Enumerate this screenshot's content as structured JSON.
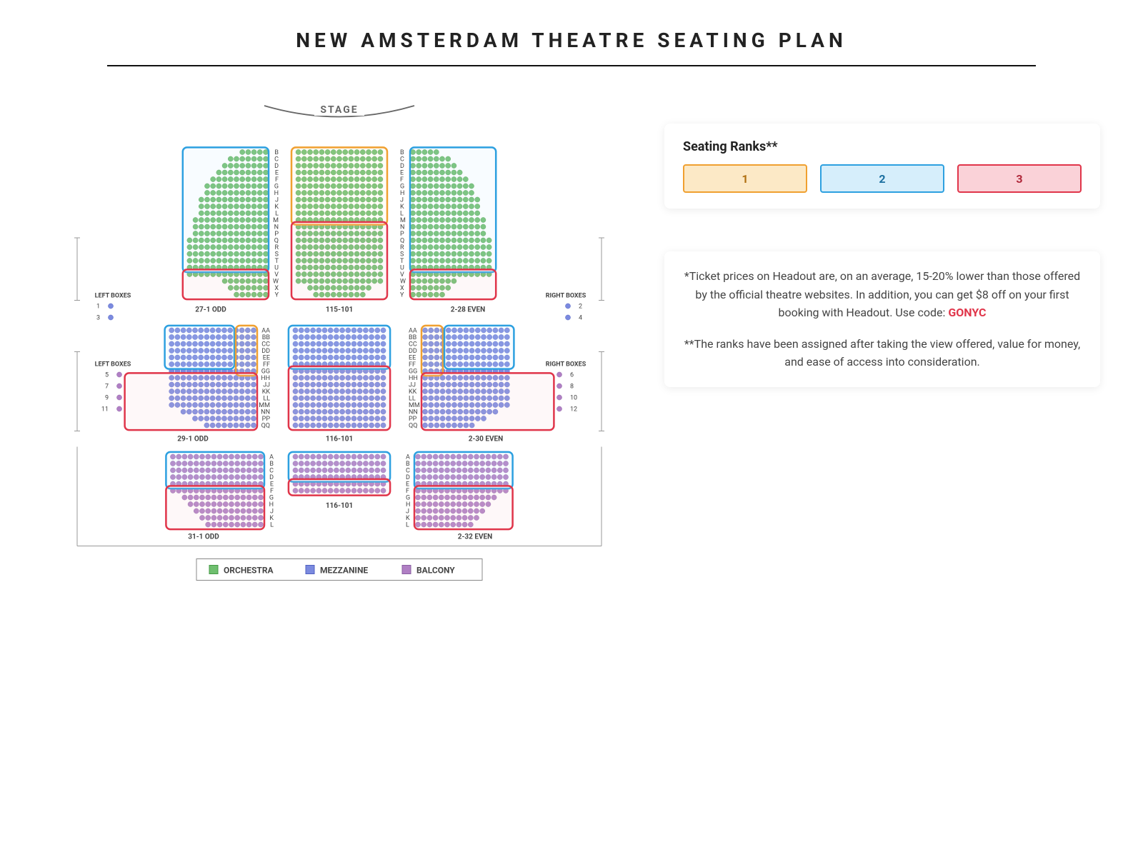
{
  "title": "NEW AMSTERDAM THEATRE SEATING PLAN",
  "stage_label": "STAGE",
  "colors": {
    "orchestra_fill": "#6fbf6f",
    "orchestra_stroke": "#459a45",
    "mezzanine_fill": "#7b8adf",
    "mezzanine_stroke": "#5060c0",
    "balcony_fill": "#b07fc4",
    "balcony_stroke": "#8a5fa2",
    "rank1_stroke": "#f0a030",
    "rank1_fill": "#fce9c6",
    "rank2_stroke": "#2da0e0",
    "rank2_fill": "#cfeafc",
    "rank3_stroke": "#e0354a",
    "rank3_fill": "#fad2d8",
    "bg": "#ffffff",
    "text": "#444444",
    "rule": "#111111"
  },
  "geometry": {
    "seat_radius": 3.6,
    "seat_dx": 8.2,
    "row_dy": 9.5
  },
  "ranks_card": {
    "title": "Seating Ranks**",
    "pills": [
      "1",
      "2",
      "3"
    ]
  },
  "side_levels": {
    "title": "ORCHESTRA",
    "mezz": "MEZZANINE",
    "balc": "BALCONY"
  },
  "note1_pre": "*Ticket prices on Headout are, on an average, 15-20% lower than those offered by the official theatre websites. In addition, you can get $8 off on your first booking with Headout. Use code: ",
  "note1_code": "GONYC",
  "note2": "**The ranks have been assigned after taking the view offered, value for money, and ease of access into consideration.",
  "boxes": {
    "left_label": "LEFT BOXES",
    "right_label": "RIGHT BOXES",
    "upper_left": [
      "1",
      "3"
    ],
    "upper_right": [
      "2",
      "4"
    ],
    "lower_left": [
      "5",
      "7",
      "9",
      "11"
    ],
    "lower_right": [
      "6",
      "8",
      "10",
      "12"
    ]
  },
  "orchestra": {
    "row_labels": [
      "B",
      "C",
      "D",
      "E",
      "F",
      "G",
      "H",
      "J",
      "K",
      "L",
      "M",
      "N",
      "P",
      "Q",
      "R",
      "S",
      "T",
      "U",
      "V",
      "W",
      "X",
      "Y"
    ],
    "left_counts": [
      5,
      7,
      8,
      9,
      10,
      11,
      11,
      12,
      12,
      12,
      13,
      13,
      13,
      14,
      14,
      14,
      14,
      14,
      14,
      8,
      7,
      6
    ],
    "center_counts": [
      15,
      15,
      15,
      15,
      15,
      15,
      15,
      15,
      15,
      15,
      15,
      15,
      15,
      15,
      15,
      15,
      15,
      15,
      15,
      15,
      11,
      9
    ],
    "right_counts": [
      5,
      7,
      8,
      9,
      10,
      11,
      11,
      12,
      12,
      12,
      13,
      13,
      13,
      14,
      14,
      14,
      14,
      14,
      14,
      8,
      7,
      6
    ],
    "left_caption": "27-1 ODD",
    "center_caption": "115-101",
    "right_caption": "2-28 EVEN",
    "rank_boxes": [
      {
        "rank": 2,
        "side": "left",
        "row_start": 0,
        "row_end": 17
      },
      {
        "rank": 1,
        "side": "center",
        "row_start": 0,
        "row_end": 10
      },
      {
        "rank": 2,
        "side": "right",
        "row_start": 0,
        "row_end": 17
      },
      {
        "rank": 3,
        "side": "left",
        "row_start": 18,
        "row_end": 21
      },
      {
        "rank": 3,
        "side": "center",
        "row_start": 11,
        "row_end": 21
      },
      {
        "rank": 3,
        "side": "right",
        "row_start": 18,
        "row_end": 21
      }
    ]
  },
  "mezzanine": {
    "row_labels": [
      "AA",
      "BB",
      "CC",
      "DD",
      "EE",
      "FF",
      "GG",
      "HH",
      "JJ",
      "KK",
      "LL",
      "MM",
      "NN",
      "PP",
      "QQ"
    ],
    "left_counts": [
      15,
      15,
      15,
      15,
      15,
      15,
      15,
      15,
      15,
      15,
      15,
      15,
      13,
      11,
      9
    ],
    "center_counts": [
      16,
      16,
      16,
      16,
      16,
      16,
      16,
      16,
      16,
      16,
      16,
      16,
      16,
      16,
      16
    ],
    "right_counts": [
      15,
      15,
      15,
      15,
      15,
      15,
      15,
      15,
      15,
      15,
      15,
      15,
      13,
      11,
      9
    ],
    "left_caption": "29-1 ODD",
    "center_caption": "116-101",
    "right_caption": "2-30 EVEN",
    "rank_boxes": [
      {
        "rank": 2,
        "side": "left-out",
        "row_start": 0,
        "row_end": 5
      },
      {
        "rank": 1,
        "side": "left-in",
        "row_start": 0,
        "row_end": 6
      },
      {
        "rank": 2,
        "side": "center",
        "row_start": 0,
        "row_end": 5
      },
      {
        "rank": 1,
        "side": "right-in",
        "row_start": 0,
        "row_end": 6
      },
      {
        "rank": 2,
        "side": "right-out",
        "row_start": 0,
        "row_end": 5
      },
      {
        "rank": 3,
        "side": "left",
        "row_start": 7,
        "row_end": 14
      },
      {
        "rank": 3,
        "side": "center",
        "row_start": 6,
        "row_end": 14
      },
      {
        "rank": 3,
        "side": "right",
        "row_start": 7,
        "row_end": 14
      }
    ]
  },
  "balcony": {
    "row_labels": [
      "A",
      "B",
      "C",
      "D",
      "E",
      "F",
      "G",
      "H",
      "J",
      "K",
      "L"
    ],
    "left_counts": [
      16,
      16,
      16,
      16,
      16,
      16,
      14,
      13,
      12,
      11,
      10
    ],
    "center_counts": [
      16,
      16,
      16,
      16,
      16,
      16
    ],
    "right_counts": [
      16,
      16,
      16,
      16,
      16,
      16,
      14,
      13,
      12,
      11,
      10
    ],
    "left_caption": "31-1 ODD",
    "center_caption": "116-101",
    "right_caption": "2-32 EVEN",
    "rank_boxes": [
      {
        "rank": 2,
        "side": "left",
        "row_start": 0,
        "row_end": 4
      },
      {
        "rank": 2,
        "side": "center",
        "row_start": 0,
        "row_end": 3
      },
      {
        "rank": 2,
        "side": "right",
        "row_start": 0,
        "row_end": 4
      },
      {
        "rank": 3,
        "side": "left",
        "row_start": 5,
        "row_end": 10
      },
      {
        "rank": 3,
        "side": "center",
        "row_start": 4,
        "row_end": 5
      },
      {
        "rank": 3,
        "side": "right",
        "row_start": 5,
        "row_end": 10
      }
    ]
  },
  "legend": [
    "ORCHESTRA",
    "MEZZANINE",
    "BALCONY"
  ]
}
